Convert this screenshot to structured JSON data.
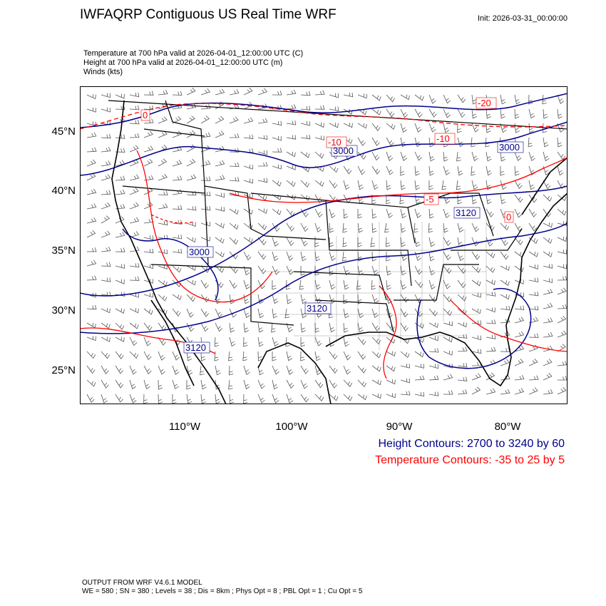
{
  "header": {
    "title": "IWFAQRP Contiguous US Real Time WRF",
    "init": "Init: 2026-03-31_00:00:00"
  },
  "fields": [
    "Temperature at 700 hPa valid at 2026-04-01_12:00:00 UTC   (C)",
    "Height at 700 hPa valid at 2026-04-01_12:00:00 UTC   (m)",
    "Winds   (kts)"
  ],
  "map": {
    "lat_labels": [
      "45°N",
      "40°N",
      "35°N",
      "30°N",
      "25°N"
    ],
    "lon_labels": [
      "110°W",
      "100°W",
      "90°W",
      "80°W"
    ],
    "height_contour_labels": [
      "3000",
      "3000",
      "3000",
      "3120",
      "3120",
      "3120"
    ],
    "temp_contour_labels": [
      "-20",
      "-10",
      "-10",
      "-5",
      "0",
      "0"
    ],
    "colors": {
      "height": "#00008b",
      "temperature": "#ff0000",
      "border": "#000000",
      "barb": "#444444"
    }
  },
  "legend": {
    "height": "Height Contours: 2700 to 3240 by 60",
    "temperature": "Temperature Contours: -35 to 25 by 5"
  },
  "footer": {
    "line1": "OUTPUT FROM WRF V4.6.1 MODEL",
    "line2": "WE = 580 ; SN = 380 ; Levels = 38 ; Dis = 8km ; Phys Opt = 8 ; PBL Opt = 1 ; Cu Opt = 5"
  }
}
